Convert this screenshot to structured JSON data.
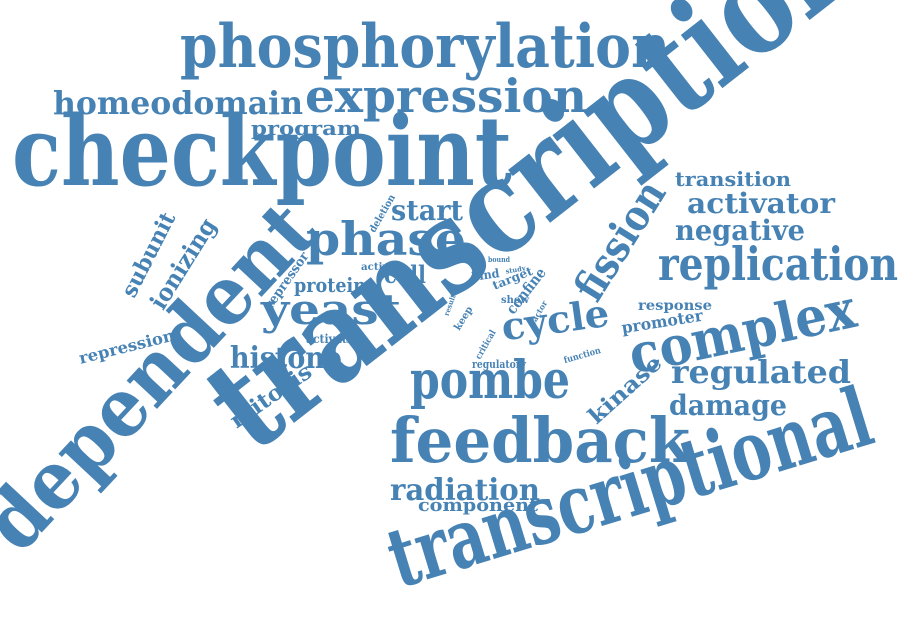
{
  "cloud": {
    "color": "#4682b4",
    "words": [
      {
        "text": "transcription"
      },
      {
        "text": "checkpoint"
      },
      {
        "text": "transcriptional"
      },
      {
        "text": "dependent"
      },
      {
        "text": "phosphorylation"
      },
      {
        "text": "complex"
      },
      {
        "text": "feedback"
      },
      {
        "text": "expression"
      },
      {
        "text": "pombe"
      },
      {
        "text": "replication"
      },
      {
        "text": "phase"
      },
      {
        "text": "yeast"
      },
      {
        "text": "cycle"
      },
      {
        "text": "fission"
      },
      {
        "text": "homeodomain"
      },
      {
        "text": "regulated"
      },
      {
        "text": "activator"
      },
      {
        "text": "negative"
      },
      {
        "text": "radiation"
      },
      {
        "text": "histone"
      },
      {
        "text": "damage"
      },
      {
        "text": "ionizing"
      },
      {
        "text": "subunit"
      },
      {
        "text": "start"
      },
      {
        "text": "kinase"
      },
      {
        "text": "transition"
      },
      {
        "text": "cell"
      },
      {
        "text": "protein"
      },
      {
        "text": "mitosis"
      },
      {
        "text": "program"
      },
      {
        "text": "repression"
      },
      {
        "text": "component"
      },
      {
        "text": "promoter"
      },
      {
        "text": "response"
      },
      {
        "text": "repressor"
      },
      {
        "text": "confine"
      },
      {
        "text": "activation"
      },
      {
        "text": "deletion"
      },
      {
        "text": "regulatory"
      },
      {
        "text": "target"
      },
      {
        "text": "bind"
      },
      {
        "text": "active"
      },
      {
        "text": "show"
      },
      {
        "text": "keep"
      },
      {
        "text": "critical"
      },
      {
        "text": "function"
      },
      {
        "text": "factor"
      },
      {
        "text": "result"
      },
      {
        "text": "study"
      },
      {
        "text": "bound"
      }
    ]
  }
}
